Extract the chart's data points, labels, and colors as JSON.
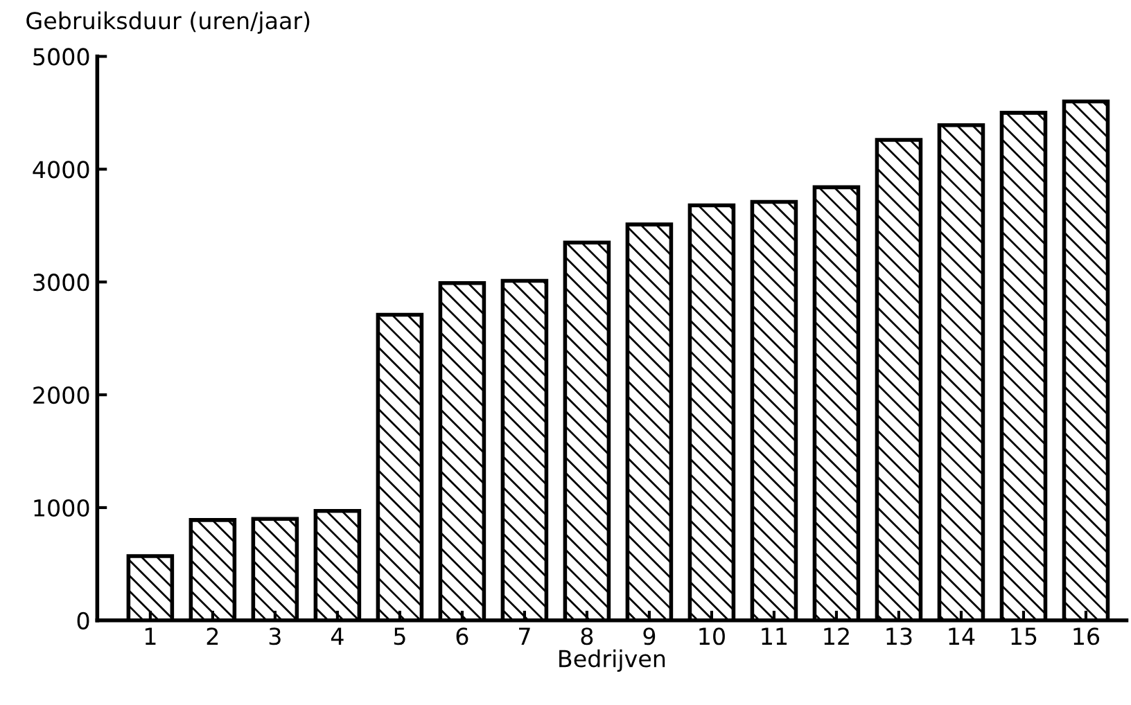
{
  "chart_data": {
    "type": "bar",
    "ylabel": "Gebruiksduur (uren/jaar)",
    "xlabel": "Bedrijven",
    "categories": [
      "1",
      "2",
      "3",
      "4",
      "5",
      "6",
      "7",
      "8",
      "9",
      "10",
      "11",
      "12",
      "13",
      "14",
      "15",
      "16"
    ],
    "values": [
      570,
      890,
      900,
      970,
      2710,
      2990,
      3010,
      3350,
      3510,
      3680,
      3710,
      3840,
      4260,
      4390,
      4500,
      4600
    ],
    "color": "#000000",
    "ylim": [
      0,
      5000
    ],
    "yticks": [
      0,
      1000,
      2000,
      3000,
      4000,
      5000
    ],
    "grid": false
  }
}
